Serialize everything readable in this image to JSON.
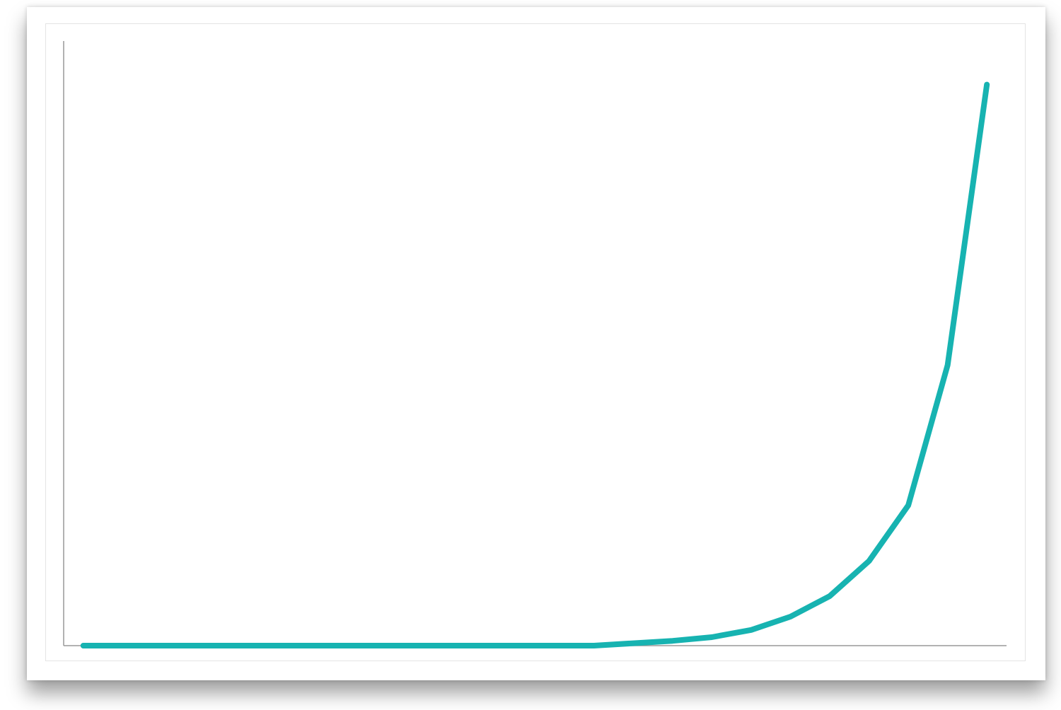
{
  "chart_data": {
    "type": "line",
    "title": "",
    "xlabel": "",
    "ylabel": "",
    "x": [
      1,
      2,
      3,
      4,
      5,
      6,
      7,
      8,
      9,
      10,
      11,
      12,
      13,
      14,
      15,
      16,
      17,
      18,
      19,
      20,
      21,
      22,
      23,
      24
    ],
    "series": [
      {
        "values": [
          0.0,
          0.0,
          0.0,
          0.0,
          0.0,
          0.0,
          0.0,
          0.0,
          0.0,
          0.0,
          0.0,
          0.0,
          0.0,
          0.0,
          0.2,
          0.4,
          0.7,
          1.3,
          2.4,
          4.1,
          7.0,
          11.6,
          23.2,
          46.4
        ]
      }
    ],
    "xlim": [
      0.5,
      24.5
    ],
    "ylim": [
      0,
      50
    ],
    "grid": false,
    "legend": "none",
    "tick_labels": "none",
    "line_color": "#17b3b1",
    "axis_color": "#999999"
  }
}
